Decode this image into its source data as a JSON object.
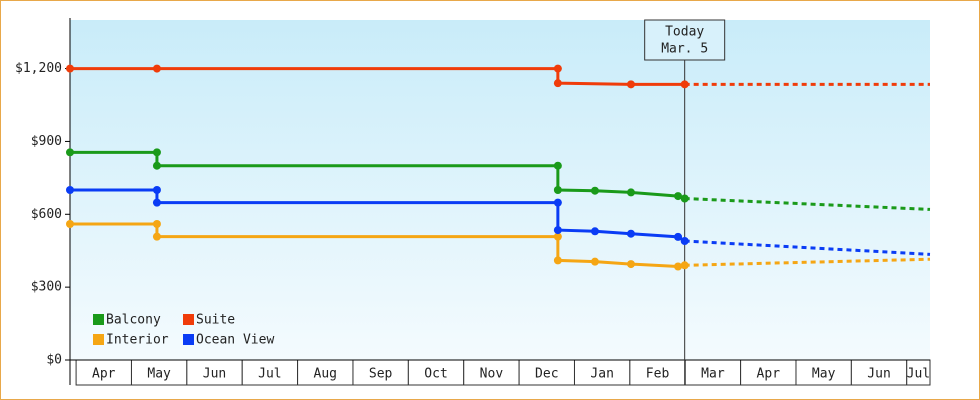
{
  "chart_data": {
    "type": "line",
    "ylim": [
      0,
      1400
    ],
    "yticks": [
      {
        "value": 0,
        "label": "$0"
      },
      {
        "value": 300,
        "label": "$300"
      },
      {
        "value": 600,
        "label": "$600"
      },
      {
        "value": 900,
        "label": "$900"
      },
      {
        "value": 1200,
        "label": "$1,200"
      }
    ],
    "xlim": [
      -0.11,
      15.42
    ],
    "xticks": [
      {
        "value": 0.5,
        "label": "Apr"
      },
      {
        "value": 1.5,
        "label": "May"
      },
      {
        "value": 2.5,
        "label": "Jun"
      },
      {
        "value": 3.5,
        "label": "Jul"
      },
      {
        "value": 4.5,
        "label": "Aug"
      },
      {
        "value": 5.5,
        "label": "Sep"
      },
      {
        "value": 6.5,
        "label": "Oct"
      },
      {
        "value": 7.5,
        "label": "Nov"
      },
      {
        "value": 8.5,
        "label": "Dec"
      },
      {
        "value": 9.5,
        "label": "Jan"
      },
      {
        "value": 10.5,
        "label": "Feb"
      },
      {
        "value": 11.5,
        "label": "Mar"
      },
      {
        "value": 12.5,
        "label": "Apr"
      },
      {
        "value": 13.5,
        "label": "May"
      },
      {
        "value": 14.5,
        "label": "Jun"
      },
      {
        "value": 15.5,
        "label": "Jul"
      }
    ],
    "today": {
      "x": 10.99,
      "label_lines": [
        "Today",
        "Mar. 5"
      ]
    },
    "series": [
      {
        "name": "Balcony",
        "color": "#1a9a1a",
        "x": [
          -0.11,
          1.46,
          1.46,
          8.7,
          8.7,
          9.37,
          10.02,
          10.87,
          10.99
        ],
        "values": [
          855,
          855,
          800,
          800,
          700,
          697,
          690,
          675,
          665
        ],
        "forecast": {
          "x": [
            10.99,
            15.42
          ],
          "values": [
            665,
            620
          ]
        }
      },
      {
        "name": "Suite",
        "color": "#f03c0a",
        "x": [
          -0.11,
          1.46,
          8.7,
          8.7,
          10.02,
          10.99
        ],
        "values": [
          1200,
          1200,
          1200,
          1140,
          1135,
          1135
        ],
        "forecast": {
          "x": [
            10.99,
            15.42
          ],
          "values": [
            1135,
            1135
          ]
        }
      },
      {
        "name": "Interior",
        "color": "#f5a614",
        "x": [
          -0.11,
          1.46,
          1.46,
          8.7,
          8.7,
          9.37,
          10.02,
          10.87,
          10.99
        ],
        "values": [
          560,
          560,
          508,
          508,
          410,
          405,
          395,
          385,
          390
        ],
        "forecast": {
          "x": [
            10.99,
            15.42
          ],
          "values": [
            390,
            415
          ]
        }
      },
      {
        "name": "Ocean View",
        "color": "#0a3cf5",
        "x": [
          -0.11,
          1.46,
          1.46,
          8.7,
          8.7,
          9.37,
          10.02,
          10.87,
          10.99
        ],
        "values": [
          700,
          700,
          648,
          648,
          535,
          530,
          520,
          507,
          490
        ],
        "forecast": {
          "x": [
            10.99,
            15.42
          ],
          "values": [
            490,
            435
          ]
        }
      }
    ]
  }
}
